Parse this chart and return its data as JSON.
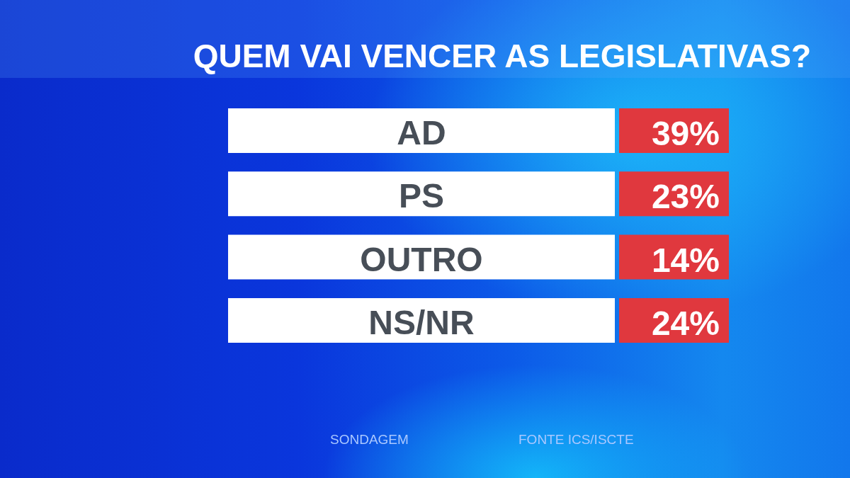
{
  "chart_data": {
    "type": "other",
    "title": "QUEM VAI VENCER AS LEGISLATIVAS?",
    "categories": [
      "AD",
      "PS",
      "OUTRO",
      "NS/NR"
    ],
    "values": [
      39,
      23,
      14,
      24
    ],
    "value_labels": [
      "39%",
      "23%",
      "14%",
      "24%"
    ],
    "color": "#e0383e",
    "annotations": [
      "SONDAGEM",
      "FONTE ICS/ISCTE"
    ]
  }
}
